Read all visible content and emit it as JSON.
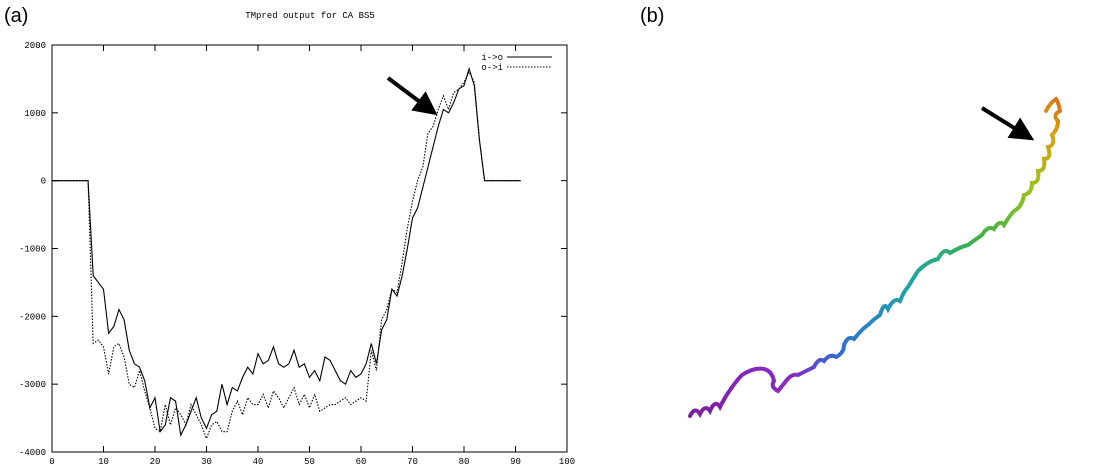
{
  "panel_labels": [
    "(a)",
    "(b)"
  ],
  "chart_data": {
    "type": "line",
    "title": "TMpred output for CA BS5",
    "x": [
      0,
      1,
      2,
      3,
      4,
      5,
      6,
      7,
      8,
      9,
      10,
      11,
      12,
      13,
      14,
      15,
      16,
      17,
      18,
      19,
      20,
      21,
      22,
      23,
      24,
      25,
      26,
      27,
      28,
      29,
      30,
      31,
      32,
      33,
      34,
      35,
      36,
      37,
      38,
      39,
      40,
      41,
      42,
      43,
      44,
      45,
      46,
      47,
      48,
      49,
      50,
      51,
      52,
      53,
      54,
      55,
      56,
      57,
      58,
      59,
      60,
      61,
      62,
      63,
      64,
      65,
      66,
      67,
      68,
      69,
      70,
      71,
      72,
      73,
      74,
      75,
      76,
      77,
      78,
      79,
      80,
      81,
      82,
      83,
      84,
      85,
      86,
      87,
      88,
      89,
      90,
      91
    ],
    "series": [
      {
        "name": "i->o",
        "color": "#000000",
        "dash": "solid",
        "values": [
          0,
          0,
          0,
          0,
          0,
          0,
          0,
          0,
          -1400,
          -1500,
          -1600,
          -2250,
          -2150,
          -1900,
          -2050,
          -2500,
          -2700,
          -2750,
          -2950,
          -3350,
          -3200,
          -3700,
          -3600,
          -3200,
          -3250,
          -3750,
          -3600,
          -3400,
          -3200,
          -3500,
          -3650,
          -3450,
          -3400,
          -3000,
          -3300,
          -3050,
          -3100,
          -2900,
          -2750,
          -2850,
          -2550,
          -2700,
          -2650,
          -2450,
          -2700,
          -2750,
          -2700,
          -2500,
          -2750,
          -2700,
          -2900,
          -2800,
          -2950,
          -2600,
          -2650,
          -2800,
          -2950,
          -3000,
          -2800,
          -2900,
          -2850,
          -2700,
          -2400,
          -2700,
          -2200,
          -2050,
          -1600,
          -1700,
          -1400,
          -1000,
          -550,
          -400,
          -100,
          200,
          500,
          800,
          1050,
          1000,
          1150,
          1350,
          1400,
          1650,
          1400,
          600,
          0,
          0,
          0,
          0,
          0,
          0,
          0,
          0
        ]
      },
      {
        "name": "o->i",
        "color": "#000000",
        "dash": "dotted",
        "values": [
          0,
          0,
          0,
          0,
          0,
          0,
          0,
          0,
          -2400,
          -2350,
          -2450,
          -2850,
          -2450,
          -2400,
          -2600,
          -3000,
          -3050,
          -2800,
          -3100,
          -3350,
          -3650,
          -3700,
          -3300,
          -3600,
          -3350,
          -3450,
          -3600,
          -3300,
          -3450,
          -3600,
          -3800,
          -3600,
          -3550,
          -3700,
          -3700,
          -3400,
          -3250,
          -3450,
          -3200,
          -3300,
          -3300,
          -3150,
          -3350,
          -3100,
          -3200,
          -3350,
          -3200,
          -3050,
          -3300,
          -3150,
          -3350,
          -3150,
          -3400,
          -3350,
          -3300,
          -3300,
          -3250,
          -3200,
          -3300,
          -3250,
          -3200,
          -3250,
          -2500,
          -2800,
          -2050,
          -1900,
          -1600,
          -1650,
          -1200,
          -700,
          -300,
          0,
          200,
          700,
          800,
          1050,
          1250,
          1050,
          1300,
          1350,
          1450,
          1600,
          1450,
          600,
          0,
          0,
          0,
          0,
          0,
          0,
          0,
          0
        ]
      }
    ],
    "xlim": [
      0,
      100
    ],
    "xticks": [
      0,
      10,
      20,
      30,
      40,
      50,
      60,
      70,
      80,
      90,
      100
    ],
    "ylim": [
      -4000,
      2000
    ],
    "yticks": [
      -4000,
      -3000,
      -2000,
      -1000,
      0,
      1000,
      2000
    ],
    "legend": "upper right"
  }
}
